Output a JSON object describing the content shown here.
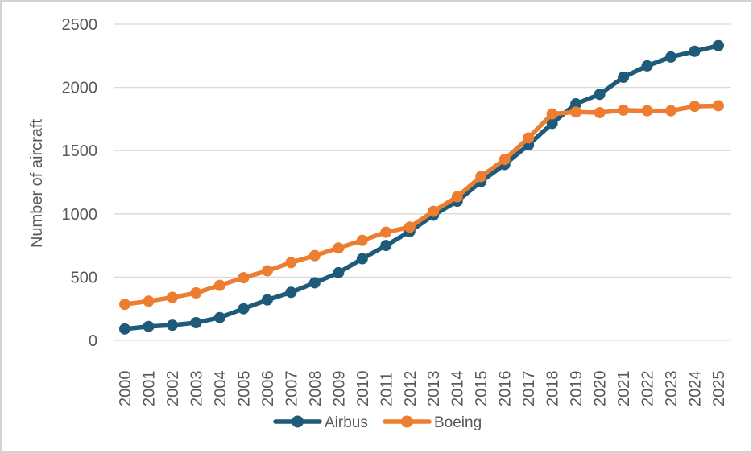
{
  "chart_data": {
    "type": "line",
    "title": "",
    "xlabel": "",
    "ylabel": "Number of aircraft",
    "categories": [
      "2000",
      "2001",
      "2002",
      "2003",
      "2004",
      "2005",
      "2006",
      "2007",
      "2008",
      "2009",
      "2010",
      "2011",
      "2012",
      "2013",
      "2014",
      "2015",
      "2016",
      "2017",
      "2018",
      "2019",
      "2020",
      "2021",
      "2022",
      "2023",
      "2024",
      "2025"
    ],
    "ylim": [
      0,
      2500
    ],
    "yticks": [
      "0",
      "500",
      "1000",
      "1500",
      "2000",
      "2500"
    ],
    "ytick_values": [
      0,
      500,
      1000,
      1500,
      2000,
      2500
    ],
    "grid": "horizontal",
    "legend_position": "bottom-center",
    "marker": "circle",
    "series": [
      {
        "name": "Airbus",
        "color": "#1E5A7A",
        "values": [
          90,
          110,
          120,
          140,
          180,
          250,
          320,
          380,
          455,
          535,
          645,
          750,
          860,
          990,
          1100,
          1255,
          1390,
          1545,
          1715,
          1870,
          1945,
          2080,
          2170,
          2240,
          2285,
          2330
        ]
      },
      {
        "name": "Boeing",
        "color": "#ED7D31",
        "values": [
          285,
          310,
          340,
          375,
          435,
          495,
          550,
          615,
          670,
          730,
          790,
          855,
          895,
          1020,
          1135,
          1295,
          1430,
          1600,
          1790,
          1805,
          1800,
          1820,
          1815,
          1815,
          1850,
          1855
        ]
      }
    ]
  },
  "colors": {
    "background": "#FFFFFF",
    "gridline": "#D9D9D9",
    "text": "#595959",
    "frame_border": "#D2D2D2"
  }
}
